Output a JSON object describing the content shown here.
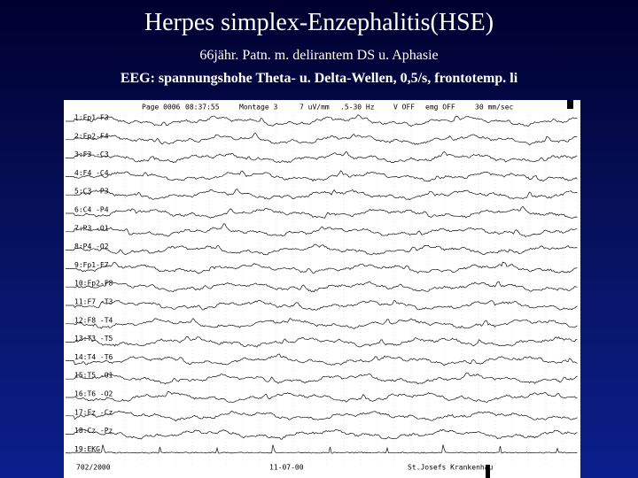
{
  "title": "Herpes simplex-Enzephalitis(HSE)",
  "subtitle": "66jähr. Patn. m. delirantem DS u.  Aphasie",
  "finding": "EEG: spannungshohe Theta- u. Delta-Wellen, 0,5/s, frontotemp. li",
  "eeg": {
    "header": [
      "Page 0006",
      "08:37:55",
      "Montage  3",
      "7 uV/mm",
      ".5-30 Hz",
      "V OFF",
      "emg OFF",
      "30  mm/sec"
    ],
    "channels": [
      "1:Fp1-F3",
      "2:Fp2-F4",
      "3:F3 -C3",
      "4:F4 -C4",
      "5:C3 -P3",
      "6:C4 -P4",
      "7:P3 -O1",
      "8:P4 -O2",
      "9:Fp1-F7",
      "10:Fp2-F8",
      "11:F7 -T3",
      "12:F8 -T4",
      "13:T3 -T5",
      "14:T4 -T6",
      "15:T5 -O1",
      "16:T6 -O2",
      "17:Fz -Cz",
      "18:Cz -Pz",
      "19:EKG"
    ],
    "footer": [
      "702/2000",
      "11-07-00",
      "St.Josefs Krankenhau"
    ]
  }
}
